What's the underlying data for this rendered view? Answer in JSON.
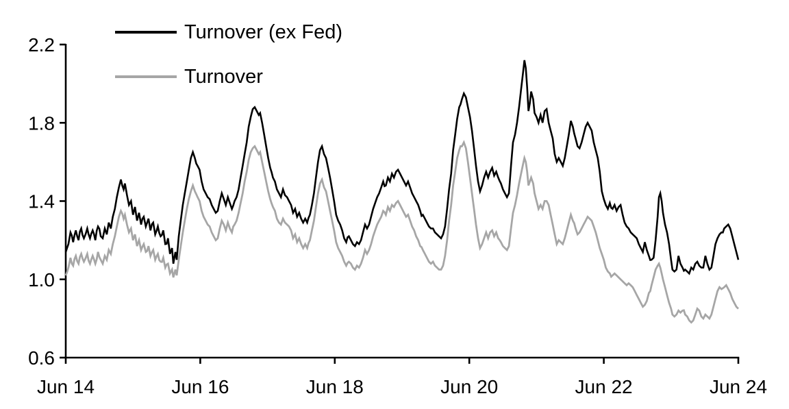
{
  "chart_data": {
    "type": "line",
    "title": "",
    "background_color": "#ffffff",
    "axis_color": "#000000",
    "grid": false,
    "legend_position": "top-left-inside",
    "legend": [
      {
        "label": "Turnover (ex Fed)",
        "color": "#000000"
      },
      {
        "label": "Turnover",
        "color": "#a6a6a6"
      }
    ],
    "x_axis": {
      "label": "",
      "range_years_after_first_tick": [
        0,
        10
      ],
      "tick_positions": [
        0,
        2,
        4,
        6,
        8,
        10
      ],
      "tick_labels": [
        "Jun 14",
        "Jun 16",
        "Jun 18",
        "Jun 20",
        "Jun 22",
        "Jun 24"
      ]
    },
    "y_axis": {
      "label": "",
      "range": [
        0.6,
        2.2
      ],
      "tick_positions": [
        0.6,
        1.0,
        1.4,
        1.8,
        2.2
      ],
      "tick_labels": [
        "0.6",
        "1.0",
        "1.4",
        "1.8",
        "2.2"
      ]
    },
    "x": [
      0,
      0.04,
      0.07,
      0.11,
      0.15,
      0.19,
      0.23,
      0.27,
      0.32,
      0.36,
      0.4,
      0.44,
      0.48,
      0.52,
      0.55,
      0.58,
      0.61,
      0.64,
      0.67,
      0.7,
      0.73,
      0.76,
      0.79,
      0.82,
      0.86,
      0.88,
      0.91,
      0.94,
      0.97,
      1.0,
      1.03,
      1.06,
      1.09,
      1.12,
      1.16,
      1.19,
      1.23,
      1.26,
      1.3,
      1.33,
      1.37,
      1.41,
      1.45,
      1.48,
      1.52,
      1.55,
      1.58,
      1.6,
      1.63,
      1.65,
      1.68,
      1.71,
      1.74,
      1.77,
      1.8,
      1.83,
      1.86,
      1.89,
      1.92,
      1.96,
      1.99,
      2.02,
      2.05,
      2.08,
      2.11,
      2.14,
      2.17,
      2.2,
      2.23,
      2.26,
      2.29,
      2.32,
      2.35,
      2.38,
      2.41,
      2.44,
      2.47,
      2.51,
      2.54,
      2.57,
      2.6,
      2.63,
      2.66,
      2.69,
      2.72,
      2.75,
      2.78,
      2.81,
      2.84,
      2.87,
      2.89,
      2.92,
      2.95,
      2.98,
      3.01,
      3.04,
      3.08,
      3.11,
      3.14,
      3.17,
      3.2,
      3.23,
      3.26,
      3.29,
      3.32,
      3.35,
      3.38,
      3.41,
      3.44,
      3.47,
      3.5,
      3.53,
      3.56,
      3.59,
      3.63,
      3.66,
      3.69,
      3.72,
      3.75,
      3.78,
      3.81,
      3.84,
      3.87,
      3.9,
      3.93,
      3.96,
      3.99,
      4.02,
      4.05,
      4.08,
      4.11,
      4.14,
      4.17,
      4.21,
      4.24,
      4.27,
      4.3,
      4.33,
      4.36,
      4.39,
      4.42,
      4.45,
      4.48,
      4.51,
      4.54,
      4.57,
      4.6,
      4.63,
      4.66,
      4.69,
      4.72,
      4.76,
      4.79,
      4.82,
      4.85,
      4.88,
      4.91,
      4.94,
      4.97,
      5.0,
      5.03,
      5.06,
      5.09,
      5.12,
      5.15,
      5.18,
      5.21,
      5.24,
      5.27,
      5.31,
      5.34,
      5.37,
      5.4,
      5.43,
      5.46,
      5.49,
      5.52,
      5.55,
      5.58,
      5.61,
      5.64,
      5.67,
      5.7,
      5.73,
      5.76,
      5.79,
      5.82,
      5.85,
      5.89,
      5.92,
      5.95,
      5.98,
      6.01,
      6.04,
      6.07,
      6.1,
      6.13,
      6.16,
      6.19,
      6.22,
      6.25,
      6.28,
      6.31,
      6.34,
      6.37,
      6.4,
      6.43,
      6.47,
      6.5,
      6.53,
      6.56,
      6.59,
      6.62,
      6.65,
      6.68,
      6.71,
      6.74,
      6.77,
      6.8,
      6.82,
      6.84,
      6.86,
      6.88,
      6.9,
      6.92,
      6.95,
      6.97,
      7.0,
      7.03,
      7.06,
      7.09,
      7.12,
      7.15,
      7.18,
      7.21,
      7.24,
      7.27,
      7.3,
      7.33,
      7.36,
      7.39,
      7.42,
      7.45,
      7.48,
      7.51,
      7.54,
      7.58,
      7.61,
      7.64,
      7.67,
      7.7,
      7.73,
      7.76,
      7.79,
      7.82,
      7.85,
      7.88,
      7.91,
      7.94,
      7.97,
      8.0,
      8.03,
      8.06,
      8.09,
      8.13,
      8.16,
      8.19,
      8.22,
      8.25,
      8.28,
      8.31,
      8.34,
      8.37,
      8.4,
      8.43,
      8.46,
      8.49,
      8.52,
      8.55,
      8.58,
      8.61,
      8.64,
      8.67,
      8.71,
      8.74,
      8.77,
      8.8,
      8.82,
      8.84,
      8.86,
      8.88,
      8.91,
      8.94,
      8.97,
      9.0,
      9.02,
      9.05,
      9.08,
      9.11,
      9.14,
      9.17,
      9.21,
      9.24,
      9.27,
      9.3,
      9.33,
      9.36,
      9.39,
      9.42,
      9.45,
      9.48,
      9.51,
      9.54,
      9.57,
      9.6,
      9.63,
      9.66,
      9.69,
      9.72,
      9.75,
      9.79,
      9.82,
      9.85,
      9.88,
      9.91,
      9.94,
      9.97,
      10.0
    ],
    "series": [
      {
        "name": "Turnover (ex Fed)",
        "color": "#000000",
        "stroke_width": 2.6,
        "noise_amplitude": 0.016,
        "values": [
          1.14,
          1.18,
          1.24,
          1.19,
          1.25,
          1.2,
          1.26,
          1.21,
          1.26,
          1.21,
          1.25,
          1.2,
          1.27,
          1.22,
          1.21,
          1.26,
          1.23,
          1.29,
          1.26,
          1.32,
          1.36,
          1.42,
          1.47,
          1.51,
          1.46,
          1.49,
          1.43,
          1.38,
          1.4,
          1.33,
          1.37,
          1.3,
          1.34,
          1.28,
          1.32,
          1.27,
          1.31,
          1.25,
          1.29,
          1.23,
          1.27,
          1.22,
          1.25,
          1.18,
          1.21,
          1.13,
          1.16,
          1.08,
          1.14,
          1.1,
          1.22,
          1.3,
          1.38,
          1.44,
          1.5,
          1.56,
          1.62,
          1.65,
          1.62,
          1.58,
          1.56,
          1.5,
          1.46,
          1.44,
          1.42,
          1.41,
          1.38,
          1.36,
          1.34,
          1.35,
          1.4,
          1.44,
          1.41,
          1.38,
          1.42,
          1.39,
          1.36,
          1.4,
          1.42,
          1.46,
          1.52,
          1.58,
          1.64,
          1.7,
          1.78,
          1.83,
          1.87,
          1.88,
          1.86,
          1.84,
          1.85,
          1.8,
          1.74,
          1.68,
          1.62,
          1.57,
          1.52,
          1.5,
          1.46,
          1.44,
          1.42,
          1.46,
          1.43,
          1.42,
          1.4,
          1.38,
          1.34,
          1.36,
          1.32,
          1.34,
          1.31,
          1.29,
          1.31,
          1.29,
          1.33,
          1.38,
          1.44,
          1.52,
          1.6,
          1.66,
          1.68,
          1.64,
          1.62,
          1.57,
          1.52,
          1.46,
          1.4,
          1.33,
          1.3,
          1.28,
          1.25,
          1.21,
          1.19,
          1.22,
          1.2,
          1.18,
          1.17,
          1.19,
          1.18,
          1.2,
          1.24,
          1.28,
          1.26,
          1.28,
          1.32,
          1.36,
          1.39,
          1.42,
          1.44,
          1.47,
          1.5,
          1.48,
          1.52,
          1.5,
          1.54,
          1.52,
          1.55,
          1.56,
          1.54,
          1.52,
          1.5,
          1.48,
          1.5,
          1.47,
          1.44,
          1.42,
          1.4,
          1.38,
          1.35,
          1.33,
          1.31,
          1.29,
          1.27,
          1.26,
          1.26,
          1.24,
          1.23,
          1.22,
          1.21,
          1.23,
          1.27,
          1.36,
          1.46,
          1.54,
          1.66,
          1.74,
          1.82,
          1.88,
          1.92,
          1.95,
          1.93,
          1.88,
          1.83,
          1.76,
          1.67,
          1.58,
          1.5,
          1.45,
          1.48,
          1.52,
          1.55,
          1.52,
          1.55,
          1.57,
          1.53,
          1.55,
          1.52,
          1.49,
          1.46,
          1.44,
          1.42,
          1.44,
          1.58,
          1.7,
          1.74,
          1.8,
          1.88,
          1.97,
          2.06,
          2.12,
          2.08,
          1.98,
          1.86,
          1.9,
          1.96,
          1.92,
          1.85,
          1.83,
          1.8,
          1.84,
          1.8,
          1.86,
          1.87,
          1.8,
          1.76,
          1.72,
          1.64,
          1.6,
          1.62,
          1.6,
          1.58,
          1.62,
          1.68,
          1.74,
          1.81,
          1.78,
          1.72,
          1.68,
          1.67,
          1.7,
          1.74,
          1.78,
          1.8,
          1.78,
          1.76,
          1.7,
          1.66,
          1.62,
          1.55,
          1.45,
          1.41,
          1.38,
          1.36,
          1.39,
          1.36,
          1.38,
          1.35,
          1.37,
          1.38,
          1.33,
          1.29,
          1.27,
          1.26,
          1.24,
          1.23,
          1.22,
          1.21,
          1.18,
          1.16,
          1.14,
          1.19,
          1.15,
          1.12,
          1.1,
          1.11,
          1.2,
          1.32,
          1.42,
          1.44,
          1.4,
          1.34,
          1.28,
          1.24,
          1.18,
          1.1,
          1.05,
          1.04,
          1.05,
          1.12,
          1.08,
          1.06,
          1.05,
          1.04,
          1.03,
          1.06,
          1.05,
          1.08,
          1.09,
          1.07,
          1.06,
          1.06,
          1.12,
          1.08,
          1.05,
          1.06,
          1.12,
          1.18,
          1.21,
          1.23,
          1.24,
          1.26,
          1.27,
          1.28,
          1.26,
          1.22,
          1.18,
          1.14,
          1.1
        ]
      },
      {
        "name": "Turnover",
        "color": "#a6a6a6",
        "stroke_width": 2.8,
        "noise_amplitude": 0.012,
        "values": [
          1.02,
          1.06,
          1.11,
          1.07,
          1.12,
          1.08,
          1.13,
          1.09,
          1.13,
          1.08,
          1.12,
          1.08,
          1.14,
          1.1,
          1.08,
          1.12,
          1.1,
          1.15,
          1.13,
          1.18,
          1.22,
          1.27,
          1.32,
          1.35,
          1.31,
          1.33,
          1.28,
          1.24,
          1.26,
          1.2,
          1.23,
          1.17,
          1.2,
          1.15,
          1.18,
          1.14,
          1.17,
          1.12,
          1.15,
          1.1,
          1.13,
          1.09,
          1.11,
          1.06,
          1.08,
          1.03,
          1.05,
          1.01,
          1.05,
          1.02,
          1.1,
          1.17,
          1.24,
          1.3,
          1.36,
          1.41,
          1.45,
          1.48,
          1.45,
          1.42,
          1.4,
          1.35,
          1.32,
          1.3,
          1.28,
          1.27,
          1.24,
          1.22,
          1.2,
          1.21,
          1.26,
          1.3,
          1.28,
          1.25,
          1.29,
          1.26,
          1.24,
          1.28,
          1.3,
          1.34,
          1.39,
          1.44,
          1.5,
          1.55,
          1.61,
          1.65,
          1.67,
          1.68,
          1.66,
          1.64,
          1.65,
          1.6,
          1.55,
          1.5,
          1.45,
          1.41,
          1.37,
          1.35,
          1.31,
          1.29,
          1.28,
          1.31,
          1.29,
          1.28,
          1.27,
          1.25,
          1.21,
          1.23,
          1.19,
          1.21,
          1.18,
          1.16,
          1.18,
          1.16,
          1.2,
          1.25,
          1.3,
          1.37,
          1.44,
          1.49,
          1.51,
          1.47,
          1.45,
          1.4,
          1.35,
          1.3,
          1.25,
          1.19,
          1.16,
          1.14,
          1.12,
          1.09,
          1.07,
          1.09,
          1.08,
          1.06,
          1.05,
          1.07,
          1.06,
          1.08,
          1.11,
          1.15,
          1.13,
          1.15,
          1.18,
          1.22,
          1.25,
          1.28,
          1.3,
          1.32,
          1.35,
          1.33,
          1.37,
          1.35,
          1.38,
          1.37,
          1.39,
          1.4,
          1.38,
          1.36,
          1.34,
          1.32,
          1.33,
          1.3,
          1.27,
          1.25,
          1.22,
          1.2,
          1.17,
          1.15,
          1.13,
          1.11,
          1.09,
          1.08,
          1.09,
          1.07,
          1.06,
          1.05,
          1.05,
          1.07,
          1.12,
          1.2,
          1.3,
          1.38,
          1.48,
          1.55,
          1.62,
          1.66,
          1.68,
          1.7,
          1.67,
          1.6,
          1.52,
          1.44,
          1.36,
          1.28,
          1.21,
          1.16,
          1.18,
          1.21,
          1.24,
          1.21,
          1.24,
          1.25,
          1.22,
          1.24,
          1.21,
          1.19,
          1.17,
          1.16,
          1.15,
          1.17,
          1.26,
          1.34,
          1.38,
          1.43,
          1.49,
          1.54,
          1.59,
          1.62,
          1.6,
          1.55,
          1.48,
          1.5,
          1.52,
          1.49,
          1.44,
          1.4,
          1.36,
          1.38,
          1.36,
          1.4,
          1.4,
          1.38,
          1.33,
          1.28,
          1.23,
          1.18,
          1.2,
          1.19,
          1.18,
          1.21,
          1.25,
          1.29,
          1.33,
          1.3,
          1.26,
          1.23,
          1.24,
          1.26,
          1.28,
          1.3,
          1.32,
          1.31,
          1.3,
          1.27,
          1.24,
          1.2,
          1.16,
          1.13,
          1.1,
          1.06,
          1.04,
          1.03,
          1.02,
          1.03,
          1.02,
          1.01,
          1.0,
          0.99,
          0.98,
          0.97,
          0.98,
          0.97,
          0.96,
          0.94,
          0.92,
          0.9,
          0.88,
          0.86,
          0.87,
          0.89,
          0.93,
          0.97,
          1.01,
          1.05,
          1.07,
          1.08,
          1.06,
          1.03,
          1.0,
          0.96,
          0.92,
          0.88,
          0.85,
          0.82,
          0.81,
          0.82,
          0.84,
          0.83,
          0.84,
          0.82,
          0.81,
          0.79,
          0.78,
          0.79,
          0.82,
          0.85,
          0.84,
          0.81,
          0.8,
          0.82,
          0.81,
          0.8,
          0.82,
          0.86,
          0.9,
          0.94,
          0.96,
          0.95,
          0.96,
          0.97,
          0.95,
          0.93,
          0.9,
          0.88,
          0.86,
          0.85
        ]
      }
    ]
  }
}
